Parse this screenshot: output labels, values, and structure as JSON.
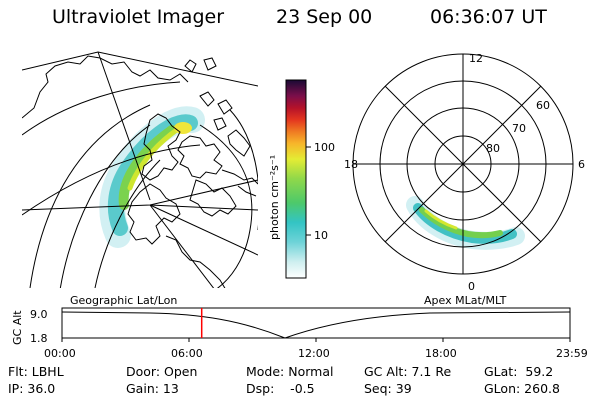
{
  "header": {
    "title": "Ultraviolet Imager",
    "date": "23 Sep 00",
    "time": "06:36:07 UT"
  },
  "map_panel": {
    "label": "Geographic Lat/Lon"
  },
  "colorbar": {
    "unit_label": "photon cm⁻²s⁻¹",
    "ticks": [
      "100",
      "10"
    ]
  },
  "polar_panel": {
    "label": "Apex MLat/MLT",
    "mlt_labels": [
      "12",
      "18",
      "6",
      "0"
    ],
    "lat_labels": [
      "60",
      "70",
      "80"
    ]
  },
  "timeline": {
    "y_label": "GC Alt",
    "y_ticks": [
      "9.0",
      "1.8"
    ],
    "x_ticks": [
      "00:00",
      "06:00",
      "12:00",
      "18:00",
      "23:59"
    ],
    "current_time_hours": 6.6
  },
  "info": {
    "filter": "Flt: LBHL",
    "ip": "IP: 36.0",
    "door": "Door: Open",
    "gain": "Gain: 13",
    "mode": "Mode: Normal",
    "dsp": "Dsp:    -0.5",
    "gc_alt": "GC Alt: 7.1 Re",
    "seq": "Seq: 39",
    "glat": "GLat:  59.2",
    "glon": "GLon: 260.8"
  },
  "colors": {
    "current_time_marker": "#ff0000"
  }
}
